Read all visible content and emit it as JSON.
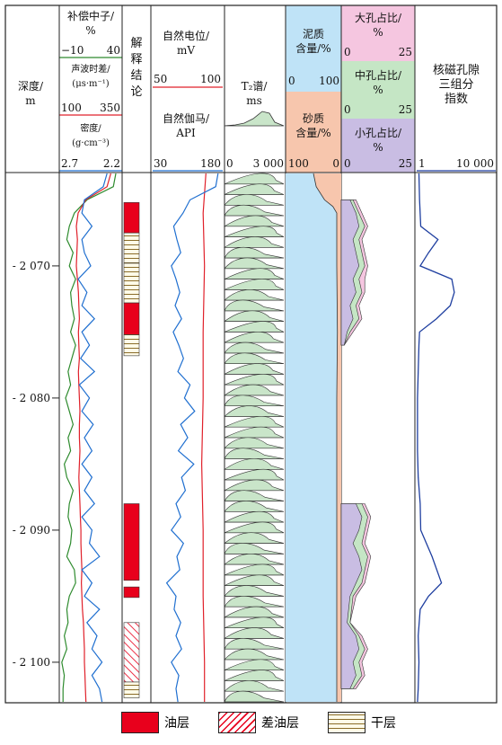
{
  "headers": {
    "depth": "深度/ m",
    "neutron": "补偿中子/ %",
    "neutron_min": "−10",
    "neutron_max": "40",
    "sonic": "声波时差/ (μs·m⁻¹)",
    "sonic_min": "100",
    "sonic_max": "350",
    "density": "密度/ (g·cm⁻³)",
    "density_min": "2.7",
    "density_max": "2.2",
    "interpretation": "解 释 结 论",
    "sp": "自然电位/ mV",
    "sp_min": "50",
    "sp_max": "100",
    "gr": "自然伽马/ API",
    "gr_min": "30",
    "gr_max": "180",
    "t2": "T₂谱/ ms",
    "t2_min": "0",
    "t2_max": "3 000",
    "shale": "泥质 含量/%",
    "shale_min": "0",
    "shale_max": "100",
    "sand": "砂质 含量/%",
    "sand_min": "100",
    "sand_max": "0",
    "large_pore": "大孔占比/ %",
    "large_min": "0",
    "large_max": "25",
    "mid_pore": "中孔占比/ %",
    "mid_min": "0",
    "mid_max": "25",
    "small_pore": "小孔占比/ %",
    "small_min": "0",
    "small_max": "25",
    "nmr_index": "核磁孔隙 三组分 指数",
    "nmr_min": "1",
    "nmr_max": "10 000"
  },
  "legend": {
    "oil": "油层",
    "poor_oil": "差油层",
    "dry": "干层"
  },
  "colors": {
    "oil": "#e8001c",
    "neutron": "#2e8b2e",
    "sonic": "#e0202a",
    "density": "#1f6fd0",
    "shale": "#bfe3f7",
    "sand": "#f7c6ad",
    "large": "#f5c6e0",
    "mid": "#c5e6c5",
    "small": "#c9bde3",
    "t2": "#c9e5c9"
  },
  "chart_data": {
    "type": "well-log",
    "depth_axis": {
      "label": "深度/ m",
      "range": [
        2063,
        2103
      ],
      "ticks": [
        2070,
        2080,
        2090,
        2100
      ]
    },
    "interpretation_zones": [
      {
        "top": 2065.2,
        "bottom": 2067.5,
        "class": "油层"
      },
      {
        "top": 2067.5,
        "bottom": 2069.8,
        "class": "干层"
      },
      {
        "top": 2069.8,
        "bottom": 2072.8,
        "class": "干层"
      },
      {
        "top": 2072.8,
        "bottom": 2075.2,
        "class": "油层"
      },
      {
        "top": 2075.2,
        "bottom": 2076.8,
        "class": "干层"
      },
      {
        "top": 2088.0,
        "bottom": 2093.8,
        "class": "油层"
      },
      {
        "top": 2094.3,
        "bottom": 2095.1,
        "class": "油层"
      },
      {
        "top": 2097.0,
        "bottom": 2101.5,
        "class": "差油层"
      },
      {
        "top": 2101.5,
        "bottom": 2102.7,
        "class": "干层"
      }
    ],
    "neutron_pct": {
      "depths": [
        2063,
        2064,
        2065,
        2066,
        2067,
        2068,
        2069,
        2070,
        2071,
        2072,
        2073,
        2074,
        2075,
        2076,
        2077,
        2078,
        2079,
        2080,
        2081,
        2082,
        2083,
        2084,
        2085,
        2086,
        2087,
        2088,
        2089,
        2090,
        2091,
        2092,
        2093,
        2094,
        2095,
        2096,
        2097,
        2098,
        2099,
        2100,
        2101,
        2102,
        2103
      ],
      "values": [
        35,
        33,
        12,
        2,
        -2,
        -4,
        1,
        -2,
        3,
        -1,
        0,
        2,
        -1,
        3,
        0,
        -3,
        -1,
        -5,
        -2,
        1,
        -3,
        -1,
        -6,
        -4,
        1,
        -2,
        -3,
        0,
        -1,
        -4,
        2,
        3,
        -2,
        -4,
        -3,
        -6,
        -4,
        -8,
        -6,
        -7,
        -7
      ]
    },
    "sonic": {
      "depths": [
        2063,
        2064,
        2065,
        2066,
        2067,
        2068,
        2069,
        2070,
        2071,
        2072,
        2073,
        2074,
        2075,
        2076,
        2077,
        2078,
        2079,
        2080,
        2081,
        2082,
        2083,
        2084,
        2085,
        2086,
        2087,
        2088,
        2089,
        2090,
        2091,
        2092,
        2093,
        2094,
        2095,
        2096,
        2097,
        2098,
        2099,
        2100,
        2101,
        2102,
        2103
      ],
      "values": [
        305,
        290,
        205,
        175,
        168,
        172,
        170,
        168,
        172,
        176,
        178,
        180,
        176,
        178,
        180,
        176,
        178,
        180,
        182,
        180,
        180,
        182,
        180,
        178,
        180,
        182,
        184,
        186,
        186,
        188,
        190,
        188,
        190,
        192,
        196,
        198,
        200,
        200,
        202,
        204,
        206
      ]
    },
    "density": {
      "depths": [
        2063,
        2064,
        2065,
        2066,
        2067,
        2068,
        2069,
        2070,
        2071,
        2072,
        2073,
        2074,
        2075,
        2076,
        2077,
        2078,
        2079,
        2080,
        2081,
        2082,
        2083,
        2084,
        2085,
        2086,
        2087,
        2088,
        2089,
        2090,
        2091,
        2092,
        2093,
        2094,
        2095,
        2096,
        2097,
        2098,
        2099,
        2100,
        2101,
        2102,
        2103
      ],
      "values": [
        2.32,
        2.35,
        2.5,
        2.52,
        2.44,
        2.52,
        2.5,
        2.45,
        2.55,
        2.48,
        2.52,
        2.42,
        2.52,
        2.46,
        2.53,
        2.42,
        2.54,
        2.46,
        2.52,
        2.43,
        2.5,
        2.44,
        2.52,
        2.44,
        2.5,
        2.42,
        2.52,
        2.44,
        2.46,
        2.38,
        2.52,
        2.44,
        2.5,
        2.38,
        2.48,
        2.4,
        2.44,
        2.36,
        2.44,
        2.38,
        2.36
      ]
    },
    "sp_mv": {
      "depths": [
        2063,
        2066,
        2070,
        2075,
        2080,
        2085,
        2090,
        2095,
        2100,
        2103
      ],
      "values": [
        88,
        86,
        87,
        86,
        86,
        85,
        86,
        86,
        87,
        87
      ]
    },
    "gr_api": {
      "depths": [
        2063,
        2064,
        2065,
        2066,
        2067,
        2068,
        2069,
        2070,
        2071,
        2072,
        2073,
        2074,
        2075,
        2076,
        2077,
        2078,
        2079,
        2080,
        2081,
        2082,
        2083,
        2084,
        2085,
        2086,
        2087,
        2088,
        2089,
        2090,
        2091,
        2092,
        2093,
        2094,
        2095,
        2096,
        2097,
        2098,
        2099,
        2100,
        2101,
        2102,
        2103
      ],
      "values": [
        170,
        165,
        110,
        95,
        75,
        82,
        90,
        70,
        80,
        88,
        78,
        92,
        74,
        86,
        96,
        84,
        110,
        98,
        120,
        90,
        105,
        85,
        118,
        92,
        100,
        80,
        90,
        70,
        96,
        82,
        88,
        60,
        80,
        76,
        90,
        80,
        92,
        70,
        86,
        80,
        84
      ]
    },
    "shale_pct": {
      "depths": [
        2063,
        2064,
        2065,
        2065.5,
        2066,
        2067,
        2070,
        2075,
        2080,
        2085,
        2090,
        2095,
        2100,
        2103
      ],
      "values": [
        50,
        55,
        70,
        85,
        92,
        92,
        92,
        93,
        92,
        92,
        92,
        92,
        92,
        92
      ]
    },
    "pore_fractions_pct": {
      "depths": [
        2065,
        2066,
        2067,
        2068,
        2069,
        2070,
        2071,
        2072,
        2073,
        2074,
        2075,
        2076,
        2088,
        2089,
        2090,
        2091,
        2092,
        2093,
        2094,
        2095,
        2097,
        2098,
        2099,
        2100,
        2101,
        2102
      ],
      "small": [
        3,
        5,
        6,
        4,
        5,
        6,
        4,
        5,
        3,
        4,
        2,
        1,
        5,
        7,
        6,
        4,
        6,
        7,
        5,
        3,
        2,
        5,
        6,
        4,
        5,
        3
      ],
      "mid": [
        4,
        6,
        8,
        6,
        7,
        8,
        6,
        7,
        5,
        6,
        3,
        1,
        7,
        9,
        8,
        7,
        9,
        8,
        7,
        4,
        3,
        6,
        8,
        6,
        7,
        4
      ],
      "large": [
        5,
        7,
        9,
        7,
        8,
        9,
        8,
        8,
        6,
        7,
        4,
        1,
        8,
        10,
        9,
        8,
        10,
        9,
        8,
        5,
        3,
        7,
        9,
        7,
        8,
        5
      ]
    },
    "nmr_index": {
      "depths": [
        2063,
        2065,
        2067,
        2068,
        2069,
        2070,
        2071,
        2072,
        2073,
        2074,
        2075,
        2076,
        2078,
        2080,
        2084,
        2086,
        2088,
        2090,
        2092,
        2094,
        2095,
        2096,
        2098,
        2100,
        2102,
        2103
      ],
      "values": [
        1.3,
        1.4,
        1.6,
        12,
        4,
        1.5,
        60,
        80,
        50,
        10,
        1.4,
        1.3,
        1.2,
        1.1,
        1.1,
        1.2,
        1.5,
        1.6,
        6,
        18,
        4,
        1.5,
        1.2,
        1.3,
        1.2,
        1.1
      ]
    }
  }
}
